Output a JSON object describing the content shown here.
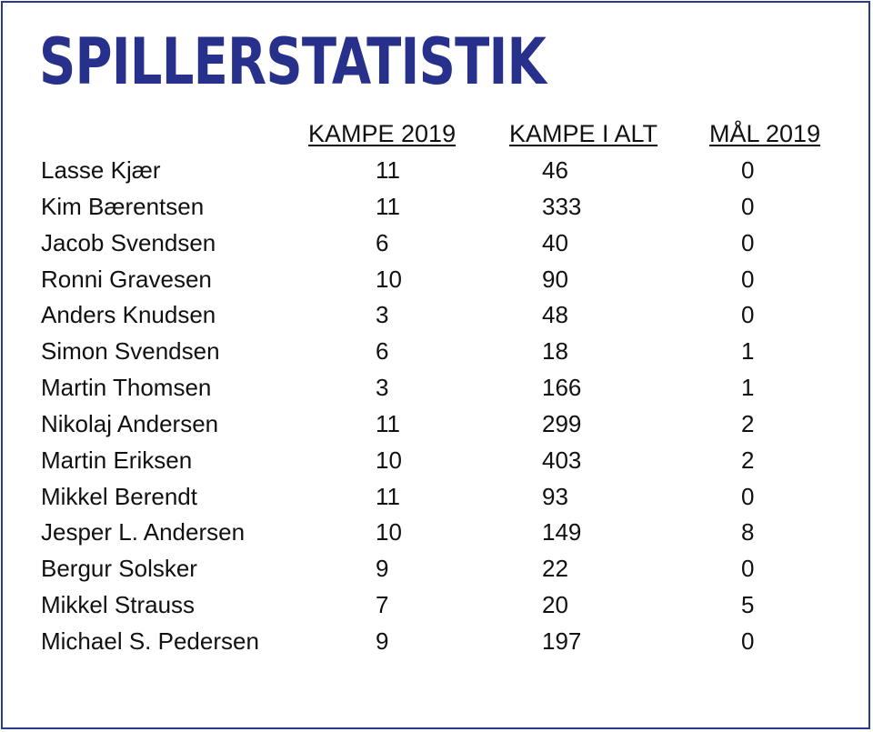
{
  "title": "SPILLERSTATISTIK",
  "columns": {
    "kampe_2019": "KAMPE 2019",
    "kampe_i_alt": "KAMPE I ALT",
    "maal_2019": "MÅL 2019"
  },
  "colors": {
    "title": "#27318b",
    "border": "#2b3a8c",
    "text": "#111111"
  },
  "rows": [
    {
      "name": "Lasse Kjær",
      "kampe_2019": "11",
      "kampe_i_alt": "46",
      "maal_2019": "0"
    },
    {
      "name": "Kim Bærentsen",
      "kampe_2019": "11",
      "kampe_i_alt": "333",
      "maal_2019": "0"
    },
    {
      "name": "Jacob Svendsen",
      "kampe_2019": "6",
      "kampe_i_alt": "40",
      "maal_2019": "0"
    },
    {
      "name": "Ronni Gravesen",
      "kampe_2019": "10",
      "kampe_i_alt": "90",
      "maal_2019": "0"
    },
    {
      "name": "Anders Knudsen",
      "kampe_2019": "3",
      "kampe_i_alt": "48",
      "maal_2019": "0"
    },
    {
      "name": "Simon Svendsen",
      "kampe_2019": "6",
      "kampe_i_alt": "18",
      "maal_2019": "1"
    },
    {
      "name": "Martin Thomsen",
      "kampe_2019": "3",
      "kampe_i_alt": "166",
      "maal_2019": "1"
    },
    {
      "name": "Nikolaj Andersen",
      "kampe_2019": "11",
      "kampe_i_alt": "299",
      "maal_2019": "2"
    },
    {
      "name": "Martin Eriksen",
      "kampe_2019": "10",
      "kampe_i_alt": "403",
      "maal_2019": "2"
    },
    {
      "name": "Mikkel Berendt",
      "kampe_2019": "11",
      "kampe_i_alt": "93",
      "maal_2019": "0"
    },
    {
      "name": "Jesper L. Andersen",
      "kampe_2019": "10",
      "kampe_i_alt": "149",
      "maal_2019": "8"
    },
    {
      "name": "Bergur Solsker",
      "kampe_2019": "9",
      "kampe_i_alt": "22",
      "maal_2019": "0"
    },
    {
      "name": "Mikkel Strauss",
      "kampe_2019": "7",
      "kampe_i_alt": "20",
      "maal_2019": "5"
    },
    {
      "name": "Michael S. Pedersen",
      "kampe_2019": "9",
      "kampe_i_alt": "197",
      "maal_2019": "0"
    }
  ]
}
